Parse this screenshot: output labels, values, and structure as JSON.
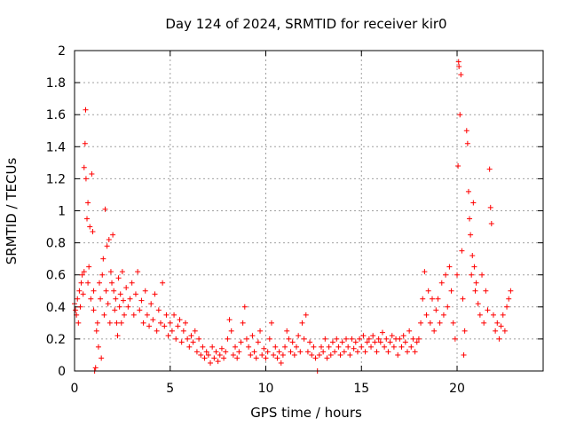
{
  "chart_data": {
    "type": "scatter",
    "title": "Day 124 of 2024, SRMTID for receiver kir0",
    "xlabel": "GPS time / hours",
    "ylabel": "SRMTID / TECUs",
    "xlim": [
      0,
      24.5
    ],
    "ylim": [
      0,
      2
    ],
    "xticks": [
      0,
      5,
      10,
      15,
      20
    ],
    "xtick_labels": [
      "0",
      "5",
      "10",
      "15",
      "20"
    ],
    "yticks": [
      0,
      0.2,
      0.4,
      0.6,
      0.8,
      1,
      1.2,
      1.4,
      1.6,
      1.8,
      2
    ],
    "ytick_labels": [
      "0",
      "0.2",
      "0.4",
      "0.6",
      "0.8",
      "1",
      "1.2",
      "1.4",
      "1.6",
      "1.8",
      "2"
    ],
    "grid": true,
    "marker": "plus",
    "series": [
      {
        "name": "SRMTID",
        "color": "#ff0000",
        "points": [
          [
            0.0,
            0.42
          ],
          [
            0.05,
            0.38
          ],
          [
            0.1,
            0.35
          ],
          [
            0.15,
            0.45
          ],
          [
            0.2,
            0.3
          ],
          [
            0.25,
            0.5
          ],
          [
            0.3,
            0.4
          ],
          [
            0.35,
            0.55
          ],
          [
            0.4,
            0.6
          ],
          [
            0.45,
            0.48
          ],
          [
            0.5,
            0.62
          ],
          [
            0.5,
            1.27
          ],
          [
            0.55,
            1.42
          ],
          [
            0.58,
            1.63
          ],
          [
            0.6,
            1.2
          ],
          [
            0.65,
            0.95
          ],
          [
            0.7,
            1.05
          ],
          [
            0.7,
            0.55
          ],
          [
            0.75,
            0.65
          ],
          [
            0.8,
            0.9
          ],
          [
            0.85,
            0.45
          ],
          [
            0.9,
            1.23
          ],
          [
            0.95,
            0.87
          ],
          [
            1.0,
            0.5
          ],
          [
            1.0,
            0.38
          ],
          [
            1.05,
            0.0
          ],
          [
            1.1,
            0.02
          ],
          [
            1.15,
            0.25
          ],
          [
            1.2,
            0.3
          ],
          [
            1.25,
            0.15
          ],
          [
            1.3,
            0.55
          ],
          [
            1.35,
            0.45
          ],
          [
            1.4,
            0.08
          ],
          [
            1.45,
            0.6
          ],
          [
            1.5,
            0.7
          ],
          [
            1.55,
            0.35
          ],
          [
            1.6,
            1.01
          ],
          [
            1.65,
            0.5
          ],
          [
            1.7,
            0.78
          ],
          [
            1.75,
            0.42
          ],
          [
            1.8,
            0.82
          ],
          [
            1.85,
            0.3
          ],
          [
            1.9,
            0.62
          ],
          [
            1.95,
            0.55
          ],
          [
            2.0,
            0.85
          ],
          [
            2.05,
            0.5
          ],
          [
            2.1,
            0.38
          ],
          [
            2.15,
            0.45
          ],
          [
            2.2,
            0.3
          ],
          [
            2.25,
            0.22
          ],
          [
            2.3,
            0.58
          ],
          [
            2.35,
            0.4
          ],
          [
            2.4,
            0.48
          ],
          [
            2.45,
            0.3
          ],
          [
            2.5,
            0.62
          ],
          [
            2.55,
            0.44
          ],
          [
            2.6,
            0.35
          ],
          [
            2.7,
            0.52
          ],
          [
            2.8,
            0.4
          ],
          [
            2.9,
            0.45
          ],
          [
            3.0,
            0.55
          ],
          [
            3.1,
            0.35
          ],
          [
            3.2,
            0.48
          ],
          [
            3.3,
            0.62
          ],
          [
            3.4,
            0.38
          ],
          [
            3.5,
            0.44
          ],
          [
            3.6,
            0.3
          ],
          [
            3.7,
            0.5
          ],
          [
            3.8,
            0.35
          ],
          [
            3.9,
            0.28
          ],
          [
            4.0,
            0.42
          ],
          [
            4.1,
            0.32
          ],
          [
            4.2,
            0.48
          ],
          [
            4.3,
            0.25
          ],
          [
            4.4,
            0.38
          ],
          [
            4.5,
            0.3
          ],
          [
            4.6,
            0.55
          ],
          [
            4.7,
            0.28
          ],
          [
            4.8,
            0.35
          ],
          [
            4.9,
            0.22
          ],
          [
            5.0,
            0.3
          ],
          [
            5.1,
            0.25
          ],
          [
            5.2,
            0.35
          ],
          [
            5.3,
            0.2
          ],
          [
            5.4,
            0.28
          ],
          [
            5.5,
            0.32
          ],
          [
            5.6,
            0.18
          ],
          [
            5.7,
            0.25
          ],
          [
            5.8,
            0.3
          ],
          [
            5.9,
            0.2
          ],
          [
            6.0,
            0.15
          ],
          [
            6.1,
            0.22
          ],
          [
            6.2,
            0.18
          ],
          [
            6.3,
            0.25
          ],
          [
            6.4,
            0.12
          ],
          [
            6.5,
            0.2
          ],
          [
            6.6,
            0.1
          ],
          [
            6.7,
            0.15
          ],
          [
            6.8,
            0.08
          ],
          [
            6.9,
            0.12
          ],
          [
            7.0,
            0.1
          ],
          [
            7.1,
            0.05
          ],
          [
            7.2,
            0.15
          ],
          [
            7.3,
            0.08
          ],
          [
            7.4,
            0.12
          ],
          [
            7.5,
            0.06
          ],
          [
            7.6,
            0.1
          ],
          [
            7.7,
            0.14
          ],
          [
            7.8,
            0.08
          ],
          [
            7.9,
            0.12
          ],
          [
            8.0,
            0.2
          ],
          [
            8.1,
            0.32
          ],
          [
            8.2,
            0.25
          ],
          [
            8.3,
            0.1
          ],
          [
            8.4,
            0.15
          ],
          [
            8.5,
            0.08
          ],
          [
            8.6,
            0.12
          ],
          [
            8.7,
            0.18
          ],
          [
            8.8,
            0.3
          ],
          [
            8.9,
            0.4
          ],
          [
            9.0,
            0.2
          ],
          [
            9.1,
            0.15
          ],
          [
            9.2,
            0.1
          ],
          [
            9.3,
            0.22
          ],
          [
            9.4,
            0.12
          ],
          [
            9.5,
            0.08
          ],
          [
            9.6,
            0.18
          ],
          [
            9.7,
            0.25
          ],
          [
            9.8,
            0.1
          ],
          [
            9.9,
            0.14
          ],
          [
            10.0,
            0.08
          ],
          [
            10.1,
            0.12
          ],
          [
            10.2,
            0.2
          ],
          [
            10.3,
            0.3
          ],
          [
            10.4,
            0.1
          ],
          [
            10.5,
            0.15
          ],
          [
            10.6,
            0.08
          ],
          [
            10.7,
            0.12
          ],
          [
            10.8,
            0.05
          ],
          [
            10.9,
            0.1
          ],
          [
            11.0,
            0.15
          ],
          [
            11.1,
            0.25
          ],
          [
            11.2,
            0.2
          ],
          [
            11.3,
            0.12
          ],
          [
            11.4,
            0.18
          ],
          [
            11.5,
            0.1
          ],
          [
            11.6,
            0.15
          ],
          [
            11.7,
            0.22
          ],
          [
            11.8,
            0.12
          ],
          [
            11.9,
            0.3
          ],
          [
            12.0,
            0.2
          ],
          [
            12.1,
            0.35
          ],
          [
            12.2,
            0.12
          ],
          [
            12.3,
            0.18
          ],
          [
            12.4,
            0.1
          ],
          [
            12.5,
            0.15
          ],
          [
            12.6,
            0.08
          ],
          [
            12.7,
            0.0
          ],
          [
            12.8,
            0.1
          ],
          [
            12.9,
            0.15
          ],
          [
            13.0,
            0.12
          ],
          [
            13.1,
            0.2
          ],
          [
            13.2,
            0.08
          ],
          [
            13.3,
            0.15
          ],
          [
            13.4,
            0.1
          ],
          [
            13.5,
            0.18
          ],
          [
            13.6,
            0.12
          ],
          [
            13.7,
            0.2
          ],
          [
            13.8,
            0.15
          ],
          [
            13.9,
            0.1
          ],
          [
            14.0,
            0.18
          ],
          [
            14.1,
            0.12
          ],
          [
            14.2,
            0.2
          ],
          [
            14.3,
            0.15
          ],
          [
            14.4,
            0.1
          ],
          [
            14.5,
            0.2
          ],
          [
            14.6,
            0.14
          ],
          [
            14.7,
            0.18
          ],
          [
            14.8,
            0.12
          ],
          [
            14.9,
            0.2
          ],
          [
            15.0,
            0.15
          ],
          [
            15.1,
            0.22
          ],
          [
            15.2,
            0.12
          ],
          [
            15.3,
            0.18
          ],
          [
            15.4,
            0.2
          ],
          [
            15.5,
            0.15
          ],
          [
            15.6,
            0.22
          ],
          [
            15.7,
            0.18
          ],
          [
            15.8,
            0.12
          ],
          [
            15.9,
            0.2
          ],
          [
            16.0,
            0.18
          ],
          [
            16.1,
            0.24
          ],
          [
            16.2,
            0.15
          ],
          [
            16.3,
            0.2
          ],
          [
            16.4,
            0.12
          ],
          [
            16.5,
            0.18
          ],
          [
            16.6,
            0.22
          ],
          [
            16.7,
            0.15
          ],
          [
            16.8,
            0.2
          ],
          [
            16.9,
            0.1
          ],
          [
            17.0,
            0.2
          ],
          [
            17.1,
            0.15
          ],
          [
            17.2,
            0.22
          ],
          [
            17.3,
            0.18
          ],
          [
            17.4,
            0.12
          ],
          [
            17.5,
            0.25
          ],
          [
            17.6,
            0.15
          ],
          [
            17.7,
            0.2
          ],
          [
            17.8,
            0.12
          ],
          [
            17.9,
            0.18
          ],
          [
            18.0,
            0.2
          ],
          [
            18.1,
            0.3
          ],
          [
            18.2,
            0.45
          ],
          [
            18.3,
            0.62
          ],
          [
            18.4,
            0.35
          ],
          [
            18.5,
            0.5
          ],
          [
            18.6,
            0.3
          ],
          [
            18.7,
            0.45
          ],
          [
            18.8,
            0.25
          ],
          [
            18.9,
            0.38
          ],
          [
            19.0,
            0.45
          ],
          [
            19.1,
            0.3
          ],
          [
            19.2,
            0.55
          ],
          [
            19.3,
            0.35
          ],
          [
            19.4,
            0.6
          ],
          [
            19.5,
            0.4
          ],
          [
            19.6,
            0.65
          ],
          [
            19.7,
            0.5
          ],
          [
            19.8,
            0.3
          ],
          [
            19.9,
            0.2
          ],
          [
            20.0,
            0.6
          ],
          [
            20.05,
            1.28
          ],
          [
            20.08,
            1.93
          ],
          [
            20.1,
            1.9
          ],
          [
            20.15,
            1.6
          ],
          [
            20.2,
            1.85
          ],
          [
            20.25,
            0.75
          ],
          [
            20.3,
            0.45
          ],
          [
            20.35,
            0.1
          ],
          [
            20.4,
            0.25
          ],
          [
            20.5,
            1.5
          ],
          [
            20.55,
            1.42
          ],
          [
            20.6,
            1.12
          ],
          [
            20.65,
            0.95
          ],
          [
            20.7,
            0.85
          ],
          [
            20.75,
            0.6
          ],
          [
            20.8,
            0.72
          ],
          [
            20.85,
            1.05
          ],
          [
            20.9,
            0.65
          ],
          [
            20.95,
            0.5
          ],
          [
            21.0,
            0.55
          ],
          [
            21.1,
            0.42
          ],
          [
            21.2,
            0.35
          ],
          [
            21.3,
            0.6
          ],
          [
            21.4,
            0.3
          ],
          [
            21.5,
            0.5
          ],
          [
            21.6,
            0.38
          ],
          [
            21.7,
            1.26
          ],
          [
            21.75,
            1.02
          ],
          [
            21.8,
            0.92
          ],
          [
            21.9,
            0.35
          ],
          [
            22.0,
            0.25
          ],
          [
            22.1,
            0.3
          ],
          [
            22.2,
            0.2
          ],
          [
            22.3,
            0.28
          ],
          [
            22.4,
            0.35
          ],
          [
            22.5,
            0.25
          ],
          [
            22.6,
            0.4
          ],
          [
            22.7,
            0.45
          ],
          [
            22.8,
            0.5
          ]
        ]
      }
    ]
  }
}
